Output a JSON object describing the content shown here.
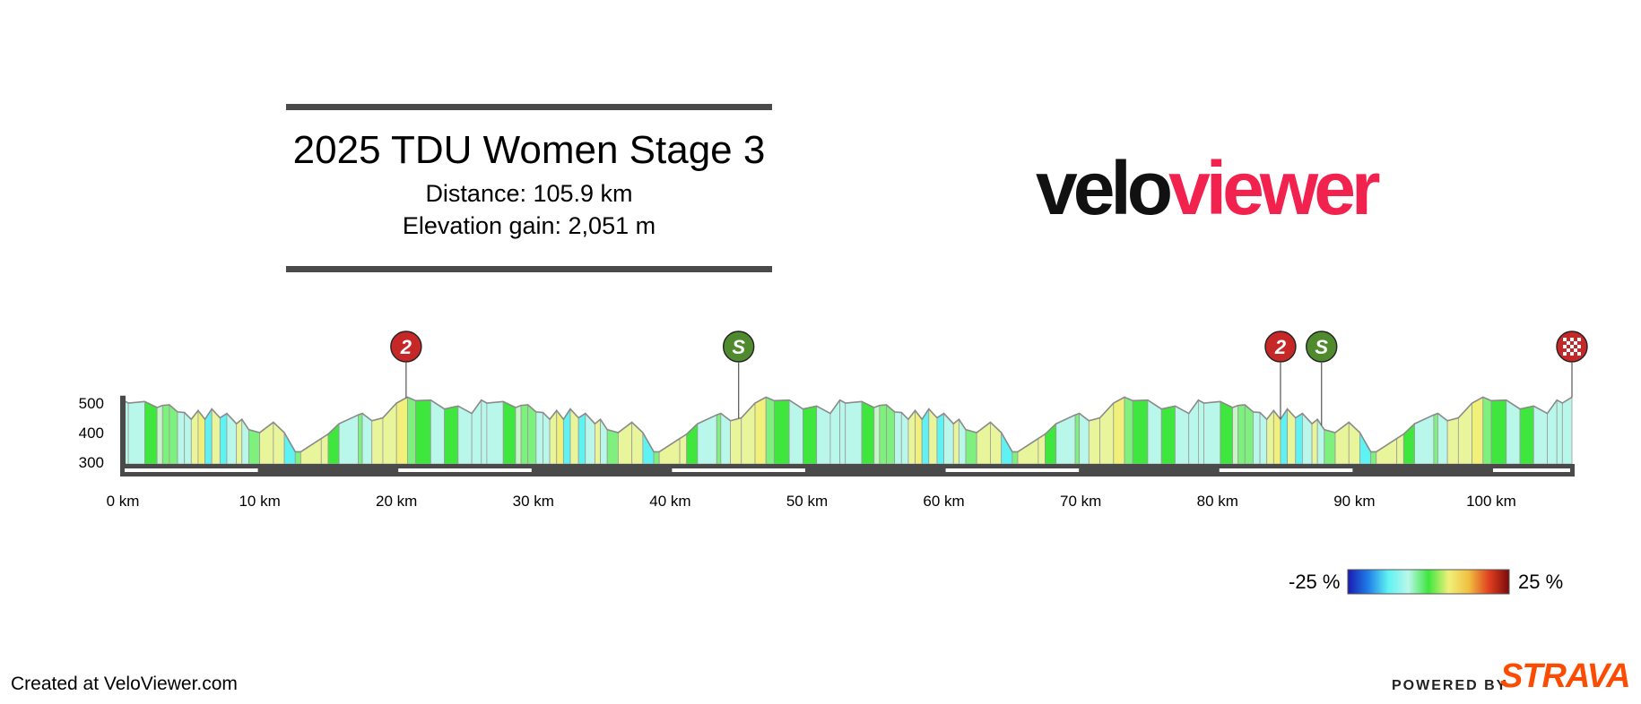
{
  "header": {
    "title": "2025 TDU Women Stage 3",
    "distance": "Distance: 105.9 km",
    "elevation_gain": "Elevation gain: 2,051 m"
  },
  "logo": {
    "part1": "velo",
    "part2": "viewer",
    "color1": "#111111",
    "color2": "#f2224f"
  },
  "footer": {
    "created": "Created at VeloViewer.com",
    "powered_by": "POWERED BY",
    "strava": "STRAVA",
    "strava_color": "#fc4c02"
  },
  "gradient_scale": {
    "min_label": "-25 %",
    "max_label": "25 %",
    "colors": [
      "#1a1ab0",
      "#1f7de8",
      "#5ff2f2",
      "#b9f7ea",
      "#3ee63e",
      "#f0f07a",
      "#f0c040",
      "#e04020",
      "#7a0a0a"
    ]
  },
  "chart_data": {
    "type": "area",
    "title": "2025 TDU Women Stage 3",
    "xlabel": "",
    "ylabel": "",
    "xlim": [
      0,
      105.9
    ],
    "ylim": [
      280,
      560
    ],
    "x_ticks": [
      0,
      10,
      20,
      30,
      40,
      50,
      60,
      70,
      80,
      90,
      100
    ],
    "x_tick_labels": [
      "0 km",
      "10 km",
      "20 km",
      "30 km",
      "40 km",
      "50 km",
      "60 km",
      "70 km",
      "80 km",
      "90 km",
      "100 km"
    ],
    "y_ticks": [
      300,
      400,
      500
    ],
    "y_tick_labels": [
      "300",
      "400",
      "500"
    ],
    "grid": false,
    "lap_length_km": 26.2,
    "lap_profile": [
      {
        "km": 0.0,
        "elev": 510,
        "color": "#b9f7ea"
      },
      {
        "km": 0.4,
        "elev": 500,
        "color": "#b9f7ea"
      },
      {
        "km": 1.6,
        "elev": 505,
        "color": "#3ee63e"
      },
      {
        "km": 2.5,
        "elev": 485,
        "color": "#c8f5c8"
      },
      {
        "km": 2.9,
        "elev": 492,
        "color": "#7ef07e"
      },
      {
        "km": 3.4,
        "elev": 494,
        "color": "#7ef07e"
      },
      {
        "km": 4.0,
        "elev": 470,
        "color": "#b9f7ea"
      },
      {
        "km": 4.5,
        "elev": 468,
        "color": "#b9f7ea"
      },
      {
        "km": 5.0,
        "elev": 445,
        "color": "#e8f59a"
      },
      {
        "km": 5.5,
        "elev": 475,
        "color": "#f0f07a"
      },
      {
        "km": 6.0,
        "elev": 445,
        "color": "#5ff2f2"
      },
      {
        "km": 6.5,
        "elev": 480,
        "color": "#e8f59a"
      },
      {
        "km": 7.1,
        "elev": 450,
        "color": "#5ff2f2"
      },
      {
        "km": 7.6,
        "elev": 465,
        "color": "#b9f7ea"
      },
      {
        "km": 8.3,
        "elev": 430,
        "color": "#e8f59a"
      },
      {
        "km": 8.7,
        "elev": 445,
        "color": "#b9f7ea"
      },
      {
        "km": 9.2,
        "elev": 410,
        "color": "#7ef07e"
      },
      {
        "km": 10.0,
        "elev": 400,
        "color": "#e8f59a"
      },
      {
        "km": 11.0,
        "elev": 435,
        "color": "#e8f59a"
      },
      {
        "km": 11.8,
        "elev": 400,
        "color": "#5ff2f2"
      },
      {
        "km": 12.6,
        "elev": 335,
        "color": "#7ef07e"
      },
      {
        "km": 13.0,
        "elev": 335,
        "color": "#e8f59a"
      },
      {
        "km": 14.5,
        "elev": 380,
        "color": "#e8f59a"
      },
      {
        "km": 15.0,
        "elev": 395,
        "color": "#3ee63e"
      },
      {
        "km": 15.8,
        "elev": 430,
        "color": "#b9f7ea"
      },
      {
        "km": 17.2,
        "elev": 460,
        "color": "#7ef07e"
      },
      {
        "km": 17.5,
        "elev": 465,
        "color": "#b9f7ea"
      },
      {
        "km": 18.2,
        "elev": 440,
        "color": "#e8f59a"
      },
      {
        "km": 19.0,
        "elev": 450,
        "color": "#e8f59a"
      },
      {
        "km": 20.0,
        "elev": 500,
        "color": "#f0f07a"
      },
      {
        "km": 20.8,
        "elev": 520,
        "color": "#7ef07e"
      },
      {
        "km": 21.4,
        "elev": 508,
        "color": "#3ee63e"
      },
      {
        "km": 22.5,
        "elev": 510,
        "color": "#b9f7ea"
      },
      {
        "km": 23.5,
        "elev": 480,
        "color": "#3ee63e"
      },
      {
        "km": 24.5,
        "elev": 490,
        "color": "#b9f7ea"
      },
      {
        "km": 25.5,
        "elev": 465,
        "color": "#b9f7ea"
      },
      {
        "km": 26.2,
        "elev": 510,
        "color": "#b9f7ea"
      }
    ],
    "start_segment": {
      "km": 0.0,
      "elev": 525,
      "color": "#4a4a4a"
    },
    "markers": [
      {
        "km": 20.7,
        "label": "2",
        "kind": "KOM",
        "color": "#c62828"
      },
      {
        "km": 45.0,
        "label": "S",
        "kind": "Sprint",
        "color": "#4f8a2e"
      },
      {
        "km": 84.6,
        "label": "2",
        "kind": "KOM",
        "color": "#c62828"
      },
      {
        "km": 87.6,
        "label": "S",
        "kind": "Sprint",
        "color": "#4f8a2e"
      },
      {
        "km": 105.9,
        "label": "finish",
        "kind": "Finish",
        "color": "#c62828"
      }
    ]
  }
}
